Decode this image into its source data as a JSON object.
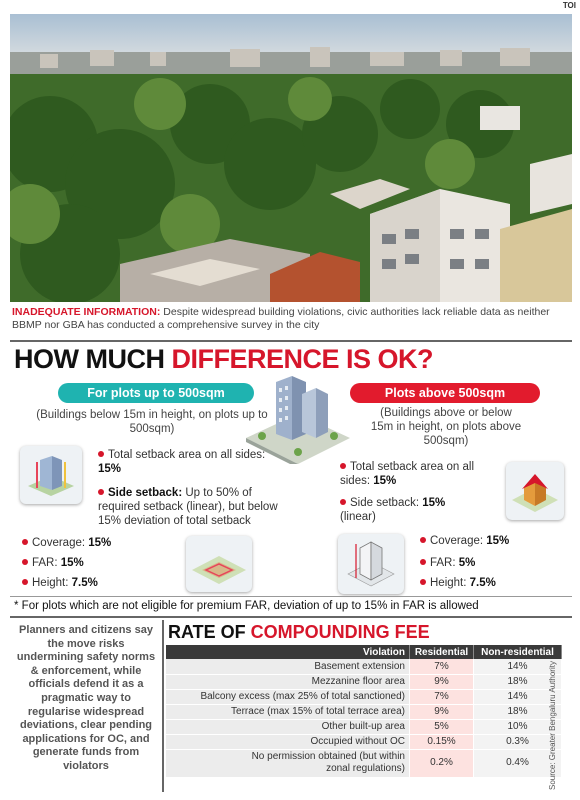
{
  "brand": "TOI",
  "caption": {
    "lead": "INADEQUATE INFORMATION:",
    "text": "Despite widespread building violations, civic authorities lack reliable data as neither BBMP nor GBA has conducted a comprehensive survey in the city"
  },
  "headline": {
    "part1": "HOW MUCH ",
    "part2": "DIFFERENCE IS OK?"
  },
  "small_plots": {
    "label": "For plots up to 500sqm",
    "note": "(Buildings below 15m in height, on plots up to 500sqm)",
    "setback_total_label": "Total setback area on all sides:",
    "setback_total_value": "15%",
    "side_setback_label": "Side setback:",
    "side_setback_text": "Up to 50% of required setback (linear), but below 15% deviation of total setback",
    "coverage_label": "Coverage:",
    "coverage_value": "15%",
    "far_label": "FAR:",
    "far_value": "15%",
    "height_label": "Height:",
    "height_value": "7.5%"
  },
  "large_plots": {
    "label": "Plots above 500sqm",
    "note": "(Buildings above or below 15m in height, on plots above 500sqm)",
    "setback_total_label": "Total setback area on all sides:",
    "setback_total_value": "15%",
    "side_setback_label": "Side setback:",
    "side_setback_value": "15%",
    "side_setback_suffix": "(linear)",
    "coverage_label": "Coverage:",
    "coverage_value": "15%",
    "far_label": "FAR:",
    "far_value": "5%",
    "height_label": "Height:",
    "height_value": "7.5%"
  },
  "footnote": "* For plots which are not eligible for premium FAR, deviation of up to 15% in FAR is allowed",
  "side_text": "Planners and citizens say the move risks undermining safety norms & enforcement, while officials defend it as a pragmatic way to regularise widespread deviations, clear pending applications for OC, and generate funds from violators",
  "fee": {
    "title_part1": "RATE OF ",
    "title_part2": "COMPOUNDING FEE",
    "headers": [
      "Violation",
      "Residential",
      "Non-residential"
    ],
    "rows": [
      [
        "Basement extension",
        "7%",
        "14%"
      ],
      [
        "Mezzanine floor area",
        "9%",
        "18%"
      ],
      [
        "Balcony excess (max 25% of total sanctioned)",
        "7%",
        "14%"
      ],
      [
        "Terrace (max 15% of total terrace area)",
        "9%",
        "18%"
      ],
      [
        "Other built-up area",
        "5%",
        "10%"
      ],
      [
        "Occupied without OC",
        "0.15%",
        "0.3%"
      ],
      [
        "No permission obtained (but within zonal regulations)",
        "0.2%",
        "0.4%"
      ]
    ]
  },
  "source": "Source: Greater Bengaluru Authority"
}
